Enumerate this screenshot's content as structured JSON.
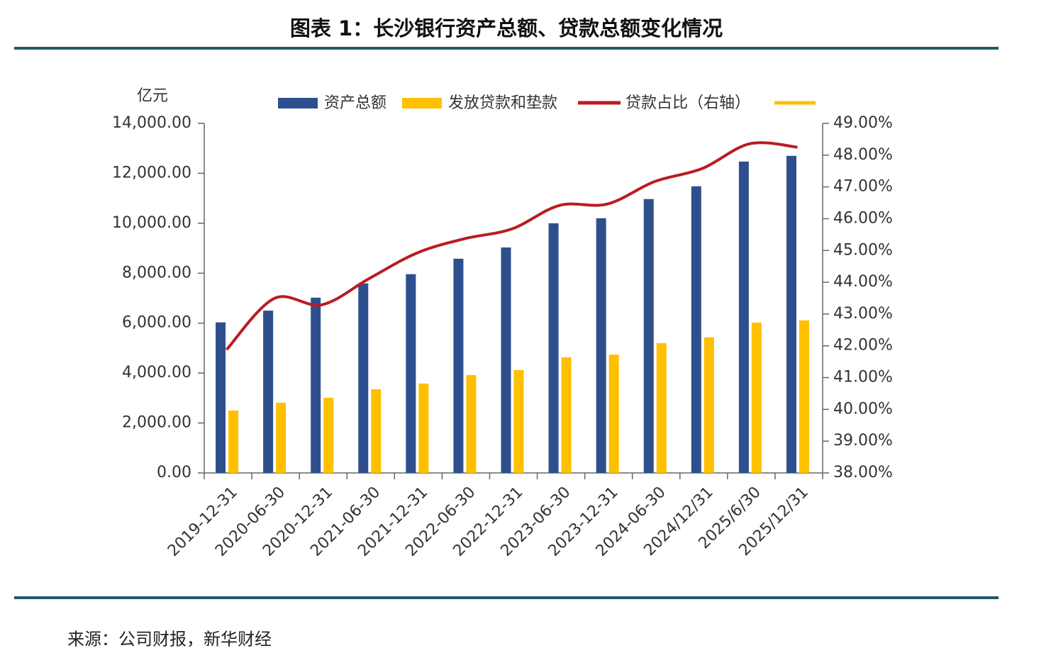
{
  "title": "图表 1：长沙银行资产总额、贷款总额变化情况",
  "source": "来源：公司财报，新华财经",
  "chart_data": {
    "type": "bar-line",
    "ylabel": "亿元",
    "categories": [
      "2019-12-31",
      "2020-06-30",
      "2020-12-31",
      "2021-06-30",
      "2021-12-31",
      "2022-06-30",
      "2022-12-31",
      "2023-06-30",
      "2023-12-31",
      "2024-06-30",
      "2024/12/31",
      "2025/6/30",
      "2025/12/31"
    ],
    "series": [
      {
        "name": "资产总额",
        "type": "bar",
        "color": "#2e4f8e",
        "values": [
          6030,
          6500,
          7020,
          7590,
          7960,
          8580,
          9030,
          10000,
          10200,
          10970,
          11480,
          12470,
          12700
        ]
      },
      {
        "name": "发放贷款和垫款",
        "type": "bar",
        "color": "#ffc000",
        "values": [
          2500,
          2810,
          3010,
          3350,
          3580,
          3920,
          4120,
          4630,
          4740,
          5200,
          5430,
          6020,
          6110
        ]
      },
      {
        "name": "贷款占比（右轴）",
        "type": "line",
        "axis": "y2",
        "color": "#b91c22",
        "values": [
          41.88,
          43.49,
          43.29,
          44.12,
          44.92,
          45.37,
          45.68,
          46.42,
          46.46,
          47.17,
          47.58,
          48.36,
          48.25
        ]
      }
    ],
    "ylim": [
      0,
      14000
    ],
    "yticks": [
      {
        "value": 0,
        "label": "0.00"
      },
      {
        "value": 2000,
        "label": "2,000.00"
      },
      {
        "value": 4000,
        "label": "4,000.00"
      },
      {
        "value": 6000,
        "label": "6,000.00"
      },
      {
        "value": 8000,
        "label": "8,000.00"
      },
      {
        "value": 10000,
        "label": "10,000.00"
      },
      {
        "value": 12000,
        "label": "12,000.00"
      },
      {
        "value": 14000,
        "label": "14,000.00"
      }
    ],
    "y2lim": [
      38,
      49
    ],
    "y2ticks": [
      {
        "value": 38,
        "label": "38.00%"
      },
      {
        "value": 39,
        "label": "39.00%"
      },
      {
        "value": 40,
        "label": "40.00%"
      },
      {
        "value": 41,
        "label": "41.00%"
      },
      {
        "value": 42,
        "label": "42.00%"
      },
      {
        "value": 43,
        "label": "43.00%"
      },
      {
        "value": 44,
        "label": "44.00%"
      },
      {
        "value": 45,
        "label": "45.00%"
      },
      {
        "value": 46,
        "label": "46.00%"
      },
      {
        "value": 47,
        "label": "47.00%"
      },
      {
        "value": 48,
        "label": "48.00%"
      },
      {
        "value": 49,
        "label": "49.00%"
      }
    ],
    "grid": false,
    "legend": "top"
  }
}
